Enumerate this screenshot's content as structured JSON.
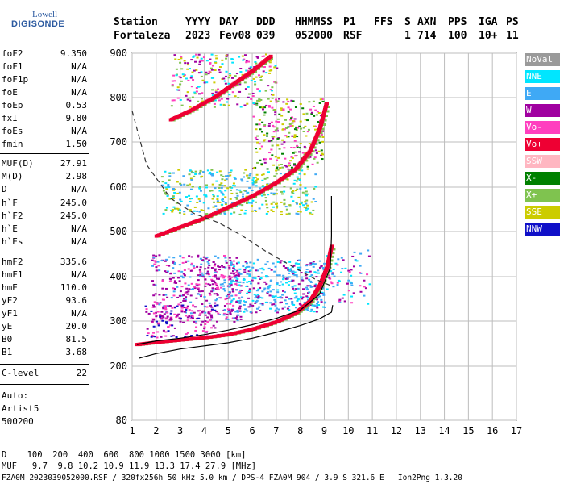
{
  "logo": {
    "line1": "Lowell",
    "line2": "DIGISONDE"
  },
  "header": {
    "row1": [
      "Station",
      "YYYY",
      "DAY",
      "DDD",
      "HHMMSS",
      "P1",
      "FFS",
      "S",
      "AXN",
      "PPS",
      "IGA",
      "PS"
    ],
    "row2": [
      "Fortaleza",
      "2023",
      "Fev08",
      "039",
      "052000",
      "RSF",
      "",
      "1",
      "714",
      "100",
      "10+",
      "11"
    ]
  },
  "params": [
    {
      "k": "foF2",
      "v": "9.350"
    },
    {
      "k": "foF1",
      "v": "N/A"
    },
    {
      "k": "foF1p",
      "v": "N/A"
    },
    {
      "k": "foE",
      "v": "N/A"
    },
    {
      "k": "foEp",
      "v": "0.53"
    },
    {
      "k": "fxI",
      "v": "9.80"
    },
    {
      "k": "foEs",
      "v": "N/A"
    },
    {
      "k": "fmin",
      "v": "1.50"
    },
    {
      "k": "MUF(D)",
      "v": "27.91"
    },
    {
      "k": "M(D)",
      "v": "2.98"
    },
    {
      "k": "D",
      "v": "N/A"
    },
    {
      "k": "h`F",
      "v": "245.0"
    },
    {
      "k": "h`F2",
      "v": "245.0"
    },
    {
      "k": "h`E",
      "v": "N/A"
    },
    {
      "k": "h`Es",
      "v": "N/A"
    },
    {
      "k": "hmF2",
      "v": "335.6"
    },
    {
      "k": "hmF1",
      "v": "N/A"
    },
    {
      "k": "hmE",
      "v": "110.0"
    },
    {
      "k": "yF2",
      "v": "93.6"
    },
    {
      "k": "yF1",
      "v": "N/A"
    },
    {
      "k": "yE",
      "v": "20.0"
    },
    {
      "k": "B0",
      "v": "81.5"
    },
    {
      "k": "B1",
      "v": "3.68"
    },
    {
      "k": "C-level",
      "v": "22"
    }
  ],
  "auto": {
    "line1": "Auto:",
    "line2": "Artist5",
    "line3": "500200"
  },
  "legend": [
    {
      "label": "NoVal",
      "color": "#9a9a9a"
    },
    {
      "label": "NNE",
      "color": "#00e6ff"
    },
    {
      "label": "E",
      "color": "#3fa9f5"
    },
    {
      "label": "W",
      "color": "#a000a0"
    },
    {
      "label": "Vo-",
      "color": "#ff3fbf"
    },
    {
      "label": "Vo+",
      "color": "#ee0033"
    },
    {
      "label": "SSW",
      "color": "#ffb6c1"
    },
    {
      "label": "X-",
      "color": "#008000"
    },
    {
      "label": "X+",
      "color": "#7fc34f"
    },
    {
      "label": "SSE",
      "color": "#cccc00"
    },
    {
      "label": "NNW",
      "color": "#1010c8"
    }
  ],
  "footer": {
    "line1": "D    100  200  400  600  800 1000 1500 3000 [km]",
    "line2": "MUF   9.7  9.8 10.2 10.9 11.9 13.3 17.4 27.9 [MHz]",
    "line3": "FZA0M_2023039052000.RSF / 320fx256h 50 kHz 5.0 km / DPS-4 FZA0M 904 / 3.9 S 321.6 E   Ion2Png 1.3.20"
  },
  "chart_data": {
    "type": "scatter",
    "x_ticks": [
      "1",
      "2",
      "3",
      "4",
      "5",
      "6",
      "7",
      "8",
      "9",
      "10",
      "11",
      "12",
      "13",
      "14",
      "15",
      "16",
      "17"
    ],
    "y_ticks": [
      "80",
      "200",
      "300",
      "400",
      "500",
      "600",
      "700",
      "800",
      "900"
    ],
    "xlim": [
      1,
      17
    ],
    "ylim": [
      80,
      900
    ],
    "grid": true,
    "series": [
      {
        "name": "Vo+",
        "color": "#ee0033",
        "points": [
          [
            1.2,
            248
          ],
          [
            2,
            253
          ],
          [
            3,
            258
          ],
          [
            4,
            263
          ],
          [
            5,
            270
          ],
          [
            6,
            282
          ],
          [
            7,
            298
          ],
          [
            7.8,
            318
          ],
          [
            8.4,
            345
          ],
          [
            8.8,
            380
          ],
          [
            9.1,
            420
          ],
          [
            9.3,
            470
          ]
        ]
      },
      {
        "name": "Vo+",
        "color": "#ee0033",
        "points": [
          [
            2,
            490
          ],
          [
            3,
            510
          ],
          [
            4,
            530
          ],
          [
            5,
            555
          ],
          [
            6,
            580
          ],
          [
            7,
            610
          ],
          [
            7.8,
            640
          ],
          [
            8.4,
            680
          ],
          [
            8.8,
            730
          ],
          [
            9.1,
            790
          ]
        ]
      },
      {
        "name": "Vo+",
        "color": "#ee0033",
        "points": [
          [
            2.6,
            750
          ],
          [
            3.4,
            770
          ],
          [
            4.4,
            800
          ],
          [
            5.2,
            830
          ],
          [
            6,
            860
          ],
          [
            6.8,
            895
          ]
        ]
      }
    ],
    "curves": [
      {
        "type": "true-height",
        "points": [
          [
            1.3,
            218
          ],
          [
            2,
            228
          ],
          [
            3,
            238
          ],
          [
            4,
            245
          ],
          [
            5,
            252
          ],
          [
            6,
            262
          ],
          [
            7,
            275
          ],
          [
            8,
            290
          ],
          [
            8.8,
            305
          ],
          [
            9.3,
            320
          ],
          [
            9.35,
            336
          ]
        ]
      },
      {
        "type": "true-height",
        "points": [
          [
            1.2,
            248
          ],
          [
            2,
            256
          ],
          [
            3,
            262
          ],
          [
            4,
            270
          ],
          [
            5,
            280
          ],
          [
            6,
            292
          ],
          [
            7,
            306
          ],
          [
            8,
            325
          ],
          [
            8.8,
            360
          ],
          [
            9.25,
            420
          ],
          [
            9.3,
            490
          ],
          [
            9.3,
            580
          ]
        ]
      },
      {
        "type": "muf-dashed",
        "points": [
          [
            1,
            770
          ],
          [
            1.6,
            650
          ],
          [
            2.6,
            575
          ],
          [
            3.6,
            540
          ],
          [
            4.6,
            520
          ],
          [
            5.6,
            490
          ],
          [
            6.6,
            455
          ],
          [
            7.6,
            425
          ],
          [
            8.6,
            395
          ],
          [
            9.35,
            378
          ]
        ]
      }
    ]
  }
}
